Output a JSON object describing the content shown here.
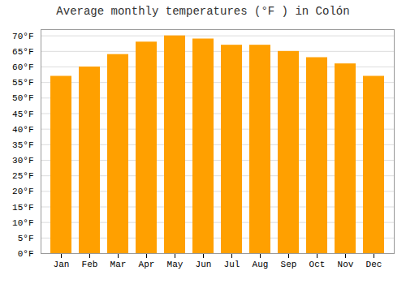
{
  "chart_data": {
    "type": "bar",
    "title": "Average monthly temperatures (°F ) in Colón",
    "categories": [
      "Jan",
      "Feb",
      "Mar",
      "Apr",
      "May",
      "Jun",
      "Jul",
      "Aug",
      "Sep",
      "Oct",
      "Nov",
      "Dec"
    ],
    "values": [
      57,
      60,
      64,
      68,
      70,
      69,
      67,
      67,
      65,
      63,
      61,
      57
    ],
    "color": "#FFA000",
    "ylim": [
      0,
      72
    ],
    "yticks": [
      {
        "value": 0,
        "label": "0°F"
      },
      {
        "value": 5,
        "label": "5°F"
      },
      {
        "value": 10,
        "label": "10°F"
      },
      {
        "value": 15,
        "label": "15°F"
      },
      {
        "value": 20,
        "label": "20°F"
      },
      {
        "value": 25,
        "label": "25°F"
      },
      {
        "value": 30,
        "label": "30°F"
      },
      {
        "value": 35,
        "label": "35°F"
      },
      {
        "value": 40,
        "label": "40°F"
      },
      {
        "value": 45,
        "label": "45°F"
      },
      {
        "value": 50,
        "label": "50°F"
      },
      {
        "value": 55,
        "label": "55°F"
      },
      {
        "value": 60,
        "label": "60°F"
      },
      {
        "value": 65,
        "label": "65°F"
      },
      {
        "value": 70,
        "label": "70°F"
      }
    ],
    "grid": true
  }
}
